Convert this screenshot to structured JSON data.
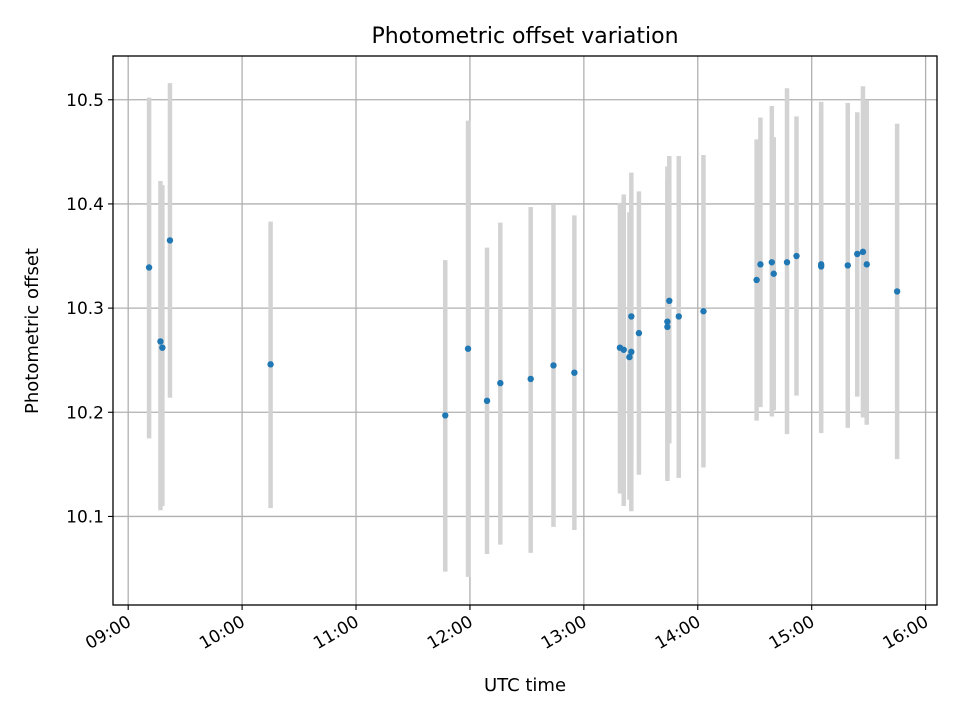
{
  "chart_data": {
    "type": "scatter",
    "title": "Photometric offset variation",
    "xlabel": "UTC time",
    "ylabel": "Photometric offset",
    "x_ticks": [
      "09:00",
      "10:00",
      "11:00",
      "12:00",
      "13:00",
      "14:00",
      "15:00",
      "16:00"
    ],
    "y_ticks": [
      "10.1",
      "10.2",
      "10.3",
      "10.4",
      "10.5"
    ],
    "xlim": [
      "08:52",
      "16:06"
    ],
    "ylim": [
      10.015,
      10.542
    ],
    "grid": true,
    "colors": {
      "points": "#1f77b4",
      "errorbars": "#d3d3d3",
      "grid": "#b0b0b0"
    },
    "series": [
      {
        "points": [
          {
            "t": "09:11",
            "y": 10.339,
            "lo": 10.175,
            "hi": 10.502
          },
          {
            "t": "09:17",
            "y": 10.268,
            "lo": 10.106,
            "hi": 10.422
          },
          {
            "t": "09:18",
            "y": 10.262,
            "lo": 10.11,
            "hi": 10.418
          },
          {
            "t": "09:22",
            "y": 10.365,
            "lo": 10.214,
            "hi": 10.516
          },
          {
            "t": "10:15",
            "y": 10.246,
            "lo": 10.108,
            "hi": 10.383
          },
          {
            "t": "11:47",
            "y": 10.197,
            "lo": 10.047,
            "hi": 10.346
          },
          {
            "t": "11:59",
            "y": 10.261,
            "lo": 10.042,
            "hi": 10.48
          },
          {
            "t": "12:09",
            "y": 10.211,
            "lo": 10.064,
            "hi": 10.358
          },
          {
            "t": "12:16",
            "y": 10.228,
            "lo": 10.073,
            "hi": 10.382
          },
          {
            "t": "12:32",
            "y": 10.232,
            "lo": 10.065,
            "hi": 10.397
          },
          {
            "t": "12:44",
            "y": 10.245,
            "lo": 10.09,
            "hi": 10.399
          },
          {
            "t": "12:55",
            "y": 10.238,
            "lo": 10.087,
            "hi": 10.389
          },
          {
            "t": "13:19",
            "y": 10.262,
            "lo": 10.122,
            "hi": 10.401
          },
          {
            "t": "13:21",
            "y": 10.26,
            "lo": 10.11,
            "hi": 10.409
          },
          {
            "t": "13:24",
            "y": 10.253,
            "lo": 10.116,
            "hi": 10.392
          },
          {
            "t": "13:25",
            "y": 10.258,
            "lo": 10.105,
            "hi": 10.41
          },
          {
            "t": "13:25",
            "y": 10.292,
            "lo": 10.155,
            "hi": 10.43
          },
          {
            "t": "13:29",
            "y": 10.276,
            "lo": 10.14,
            "hi": 10.412
          },
          {
            "t": "13:44",
            "y": 10.287,
            "lo": 10.134,
            "hi": 10.436
          },
          {
            "t": "13:44",
            "y": 10.282,
            "lo": 10.14,
            "hi": 10.424
          },
          {
            "t": "13:45",
            "y": 10.307,
            "lo": 10.17,
            "hi": 10.446
          },
          {
            "t": "13:50",
            "y": 10.292,
            "lo": 10.137,
            "hi": 10.446
          },
          {
            "t": "14:03",
            "y": 10.297,
            "lo": 10.147,
            "hi": 10.447
          },
          {
            "t": "14:31",
            "y": 10.327,
            "lo": 10.192,
            "hi": 10.462
          },
          {
            "t": "14:33",
            "y": 10.342,
            "lo": 10.205,
            "hi": 10.483
          },
          {
            "t": "14:39",
            "y": 10.344,
            "lo": 10.196,
            "hi": 10.494
          },
          {
            "t": "14:40",
            "y": 10.333,
            "lo": 10.202,
            "hi": 10.464
          },
          {
            "t": "14:47",
            "y": 10.344,
            "lo": 10.179,
            "hi": 10.511
          },
          {
            "t": "14:52",
            "y": 10.35,
            "lo": 10.216,
            "hi": 10.484
          },
          {
            "t": "15:05",
            "y": 10.34,
            "lo": 10.18,
            "hi": 10.498
          },
          {
            "t": "15:05",
            "y": 10.342,
            "lo": 10.19,
            "hi": 10.495
          },
          {
            "t": "15:19",
            "y": 10.341,
            "lo": 10.185,
            "hi": 10.497
          },
          {
            "t": "15:24",
            "y": 10.352,
            "lo": 10.215,
            "hi": 10.488
          },
          {
            "t": "15:27",
            "y": 10.354,
            "lo": 10.195,
            "hi": 10.513
          },
          {
            "t": "15:29",
            "y": 10.342,
            "lo": 10.188,
            "hi": 10.499
          },
          {
            "t": "15:45",
            "y": 10.316,
            "lo": 10.155,
            "hi": 10.477
          }
        ]
      }
    ]
  }
}
